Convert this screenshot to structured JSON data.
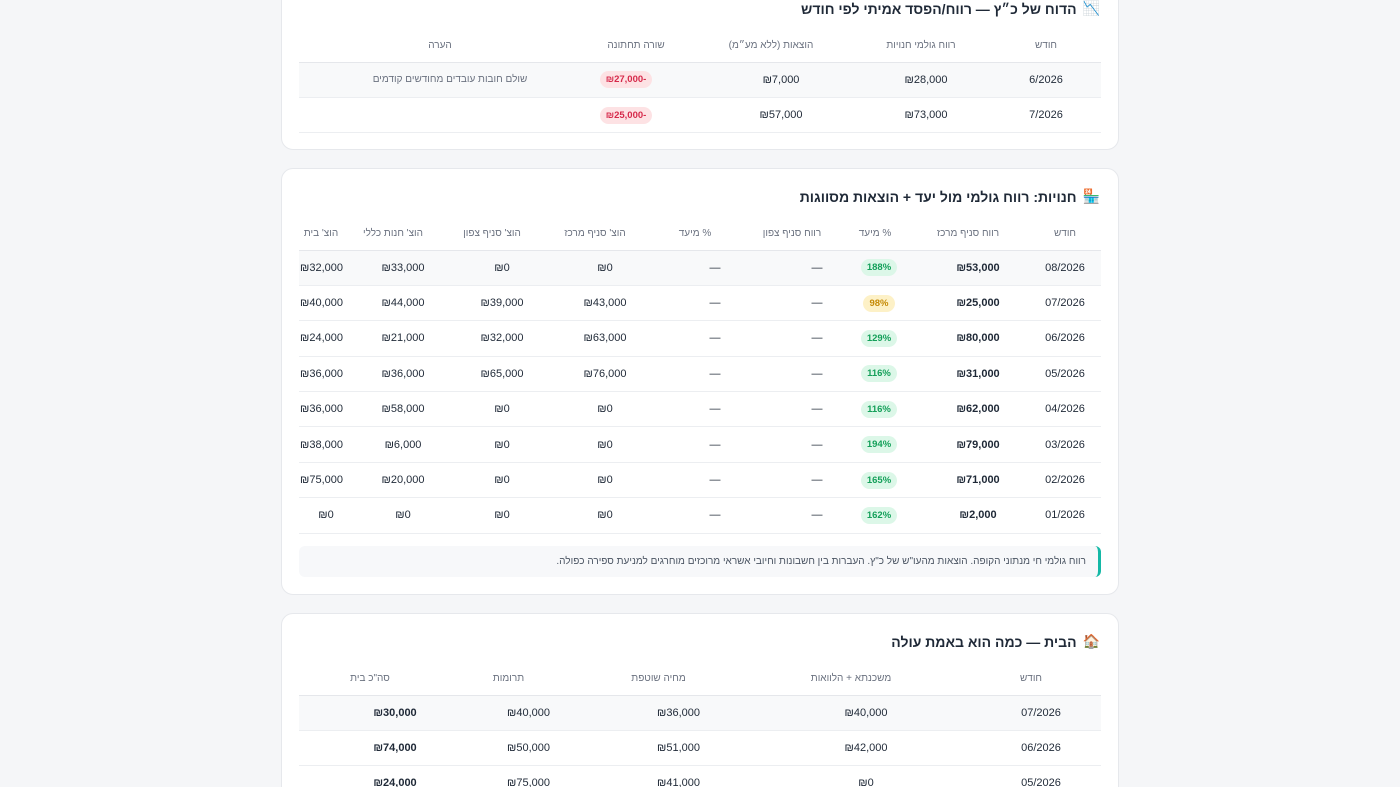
{
  "card1": {
    "icon": "📉",
    "title": "הדוח של כ״ץ — רווח/הפסד אמיתי לפי חודש",
    "headers": [
      "חודש",
      "רווח גולמי חנויות",
      "הוצאות (ללא מע״מ)",
      "שורה תחתונה",
      "הערה"
    ],
    "rows": [
      {
        "month": "6/2026",
        "gross": "₪28,000",
        "expenses": "₪7,000",
        "bottom": "-₪27,000",
        "note": "שולם חובות עובדים מחודשים קודמים"
      },
      {
        "month": "7/2026",
        "gross": "₪73,000",
        "expenses": "₪57,000",
        "bottom": "-₪25,000",
        "note": ""
      }
    ]
  },
  "card2": {
    "icon": "🏪",
    "title": "חנויות: רווח גולמי מול יעד + הוצאות מסווגות",
    "headers": [
      "חודש",
      "רווח סניף מרכז",
      "% מיעד",
      "רווח סניף צפון",
      "% מיעד",
      "הוצ' סניף מרכז",
      "הוצ' סניף צפון",
      "הוצ' חנות כללי",
      "הוצ' בית"
    ],
    "rows": [
      {
        "month": "08/2026",
        "center": "₪53,000",
        "pct": "188%",
        "pct_level": "green",
        "north": "—",
        "north_pct": "—",
        "exp_center": "₪0",
        "exp_north": "₪0",
        "exp_general": "₪33,000",
        "exp_home": "₪32,000"
      },
      {
        "month": "07/2026",
        "center": "₪25,000",
        "pct": "98%",
        "pct_level": "yellow",
        "north": "—",
        "north_pct": "—",
        "exp_center": "₪43,000",
        "exp_north": "₪39,000",
        "exp_general": "₪44,000",
        "exp_home": "₪40,000"
      },
      {
        "month": "06/2026",
        "center": "₪80,000",
        "pct": "129%",
        "pct_level": "green",
        "north": "—",
        "north_pct": "—",
        "exp_center": "₪63,000",
        "exp_north": "₪32,000",
        "exp_general": "₪21,000",
        "exp_home": "₪24,000"
      },
      {
        "month": "05/2026",
        "center": "₪31,000",
        "pct": "116%",
        "pct_level": "green",
        "north": "—",
        "north_pct": "—",
        "exp_center": "₪76,000",
        "exp_north": "₪65,000",
        "exp_general": "₪36,000",
        "exp_home": "₪36,000"
      },
      {
        "month": "04/2026",
        "center": "₪62,000",
        "pct": "116%",
        "pct_level": "green",
        "north": "—",
        "north_pct": "—",
        "exp_center": "₪0",
        "exp_north": "₪0",
        "exp_general": "₪58,000",
        "exp_home": "₪36,000"
      },
      {
        "month": "03/2026",
        "center": "₪79,000",
        "pct": "194%",
        "pct_level": "green",
        "north": "—",
        "north_pct": "—",
        "exp_center": "₪0",
        "exp_north": "₪0",
        "exp_general": "₪6,000",
        "exp_home": "₪38,000"
      },
      {
        "month": "02/2026",
        "center": "₪71,000",
        "pct": "165%",
        "pct_level": "green",
        "north": "—",
        "north_pct": "—",
        "exp_center": "₪0",
        "exp_north": "₪0",
        "exp_general": "₪20,000",
        "exp_home": "₪75,000"
      },
      {
        "month": "01/2026",
        "center": "₪2,000",
        "pct": "162%",
        "pct_level": "green",
        "north": "—",
        "north_pct": "—",
        "exp_center": "₪0",
        "exp_north": "₪0",
        "exp_general": "₪0",
        "exp_home": "₪0"
      }
    ],
    "note": "רווח גולמי חי מנתוני הקופה. הוצאות מהעו\"ש של כ\"ץ. העברות בין חשבונות וחיובי אשראי מרוכזים מוחרגים למניעת ספירה כפולה."
  },
  "card3": {
    "icon": "🏠",
    "title": "הבית — כמה הוא באמת עולה",
    "headers": [
      "חודש",
      "משכנתא + הלוואות",
      "מחיה שוטפת",
      "תרומות",
      "סה\"כ בית"
    ],
    "rows": [
      {
        "month": "07/2026",
        "mortgage": "₪40,000",
        "living": "₪36,000",
        "donations": "₪40,000",
        "total": "₪30,000"
      },
      {
        "month": "06/2026",
        "mortgage": "₪42,000",
        "living": "₪51,000",
        "donations": "₪50,000",
        "total": "₪74,000"
      },
      {
        "month": "05/2026",
        "mortgage": "₪0",
        "living": "₪41,000",
        "donations": "₪75,000",
        "total": "₪24,000"
      }
    ]
  },
  "colors": {
    "accent": "#14b8a6",
    "pill_green_bg": "#dcf7e8",
    "pill_green_text": "#15a05a",
    "pill_yellow_bg": "#fdf1c7",
    "pill_yellow_text": "#c58a06",
    "pill_red_bg": "#fde2e4",
    "pill_red_text": "#d6294a"
  }
}
